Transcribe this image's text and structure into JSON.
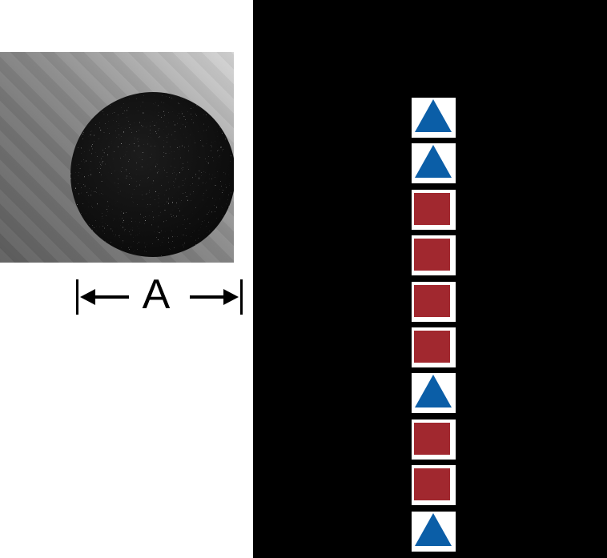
{
  "dimension": {
    "label": "A"
  },
  "product_photo": {
    "description": "black-round-cord-cross-section-photo"
  },
  "panel": {
    "cells": [
      {
        "shape": "triangle"
      },
      {
        "shape": "triangle"
      },
      {
        "shape": "square"
      },
      {
        "shape": "square"
      },
      {
        "shape": "square"
      },
      {
        "shape": "square"
      },
      {
        "shape": "triangle"
      },
      {
        "shape": "square"
      },
      {
        "shape": "square"
      },
      {
        "shape": "triangle"
      }
    ]
  },
  "colors": {
    "triangle": "#0b5ea7",
    "square": "#a1282f",
    "panel": "#000000",
    "cord": "#0d0d0d"
  }
}
